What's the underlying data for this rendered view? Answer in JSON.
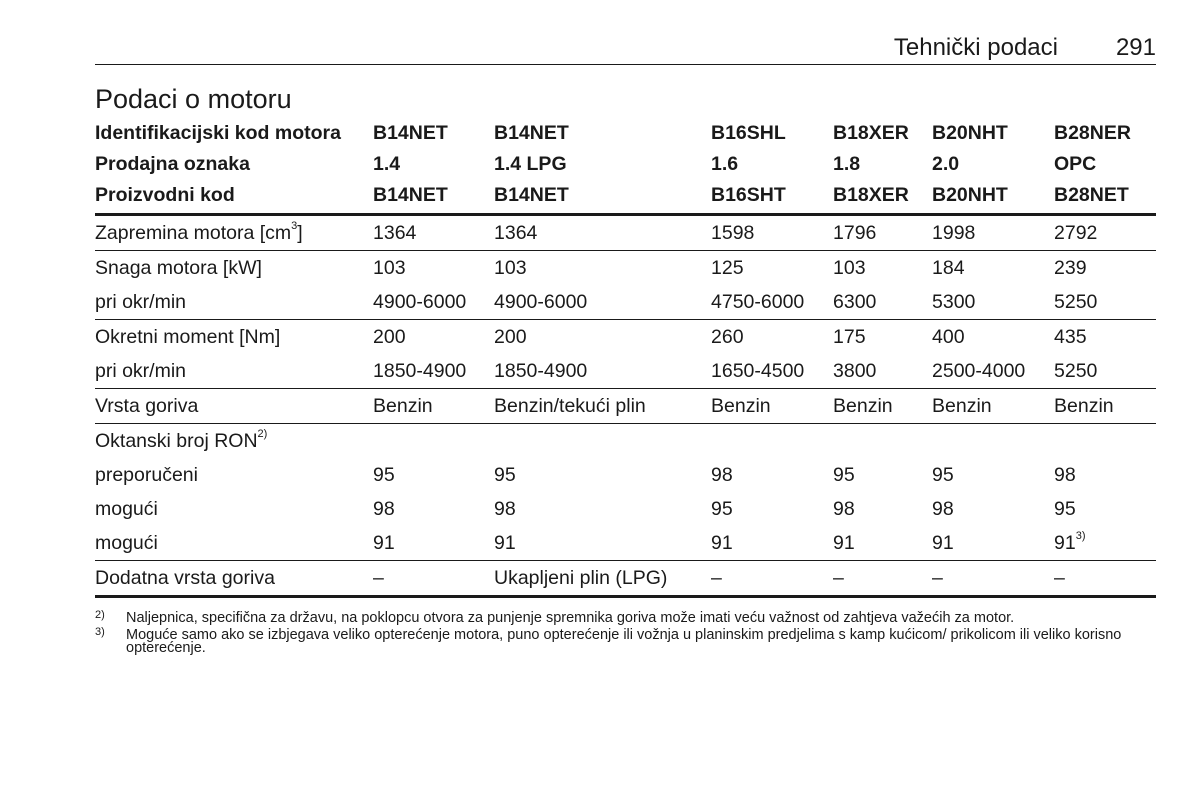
{
  "header": {
    "section": "Tehnički podaci",
    "page_number": "291"
  },
  "title": "Podaci o motoru",
  "table": {
    "head_rows": [
      {
        "label": "Identifikacijski kod motora",
        "cells": [
          "B14NET",
          "B14NET",
          "B16SHL",
          "B18XER",
          "B20NHT",
          "B28NER"
        ]
      },
      {
        "label": "Prodajna oznaka",
        "cells": [
          "1.4",
          "1.4 LPG",
          "1.6",
          "1.8",
          "2.0",
          "OPC"
        ]
      },
      {
        "label": "Proizvodni kod",
        "cells": [
          "B14NET",
          "B14NET",
          "B16SHT",
          "B18XER",
          "B20NHT",
          "B28NET"
        ]
      }
    ],
    "body_rows": [
      {
        "label": "Zapremina motora [cm",
        "label_sup": "3",
        "label_after": "]",
        "cells": [
          "1364",
          "1364",
          "1598",
          "1796",
          "1998",
          "2792"
        ]
      },
      {
        "label": "Snaga motora [kW]",
        "cells": [
          "103",
          "103",
          "125",
          "103",
          "184",
          "239"
        ]
      },
      {
        "label": "pri okr/min",
        "cells": [
          "4900-6000",
          "4900-6000",
          "4750-6000",
          "6300",
          "5300",
          "5250"
        ]
      },
      {
        "label": "Okretni moment [Nm]",
        "cells": [
          "200",
          "200",
          "260",
          "175",
          "400",
          "435"
        ]
      },
      {
        "label": "pri okr/min",
        "cells": [
          "1850-4900",
          "1850-4900",
          "1650-4500",
          "3800",
          "2500-4000",
          "5250"
        ]
      },
      {
        "label": "Vrsta goriva",
        "cells": [
          "Benzin",
          "Benzin/tekući plin",
          "Benzin",
          "Benzin",
          "Benzin",
          "Benzin"
        ]
      },
      {
        "label": "Oktanski broj RON",
        "label_sup": "2)"
      },
      {
        "label": "preporučeni",
        "cells": [
          "95",
          "95",
          "98",
          "95",
          "95",
          "98"
        ]
      },
      {
        "label": "mogući",
        "cells": [
          "98",
          "98",
          "95",
          "98",
          "98",
          "95"
        ]
      },
      {
        "label": "mogući",
        "cells": [
          "91",
          "91",
          "91",
          "91",
          "91",
          "91"
        ],
        "last_cell_sup": "3)"
      },
      {
        "label": "Dodatna vrsta goriva",
        "cells": [
          "–",
          "Ukapljeni plin (LPG)",
          "–",
          "–",
          "–",
          "–"
        ]
      }
    ]
  },
  "footnotes": [
    {
      "mark": "2)",
      "text": "Naljepnica, specifična za državu, na poklopcu otvora za punjenje spremnika goriva može imati veću važnost od zahtjeva važećih za motor."
    },
    {
      "mark": "3)",
      "text": "Moguće samo ako se izbjegava veliko opterećenje motora, puno opterećenje ili vožnja u planinskim predjelima s kamp kućicom/ prikolicom ili veliko korisno opterećenje."
    }
  ]
}
